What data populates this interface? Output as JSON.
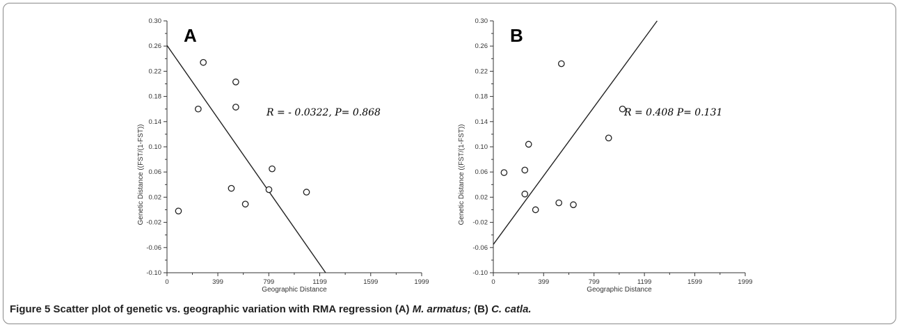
{
  "chart_data": [
    {
      "type": "scatter",
      "panel_label": "A",
      "annotation": "R = - 0.0322,  P= 0.868",
      "xlabel": "Geographic Distance",
      "ylabel": "Genetic Distance ((FST/(1-FST))",
      "xlim": [
        0,
        1999
      ],
      "ylim": [
        -0.1,
        0.3
      ],
      "xticks": [
        "0",
        "399",
        "799",
        "1199",
        "1599",
        "1999"
      ],
      "yticks": [
        "-0.10",
        "-0.06",
        "-0.02",
        "0.02",
        "0.06",
        "0.10",
        "0.14",
        "0.18",
        "0.22",
        "0.26",
        "0.30"
      ],
      "points": [
        {
          "x": 90,
          "y": -0.002
        },
        {
          "x": 245,
          "y": 0.16
        },
        {
          "x": 285,
          "y": 0.234
        },
        {
          "x": 505,
          "y": 0.034
        },
        {
          "x": 540,
          "y": 0.203
        },
        {
          "x": 540,
          "y": 0.163
        },
        {
          "x": 615,
          "y": 0.009
        },
        {
          "x": 800,
          "y": 0.032
        },
        {
          "x": 825,
          "y": 0.065
        },
        {
          "x": 1095,
          "y": 0.028
        }
      ],
      "regression_line": [
        {
          "x": 0,
          "y": 0.261
        },
        {
          "x": 1245,
          "y": -0.1
        }
      ]
    },
    {
      "type": "scatter",
      "panel_label": "B",
      "annotation": "R = 0.408 P= 0.131",
      "xlabel": "Geographic Distance",
      "ylabel": "Genetic Distance ((FST/(1-FST))",
      "xlim": [
        0,
        1999
      ],
      "ylim": [
        -0.1,
        0.3
      ],
      "xticks": [
        "0",
        "399",
        "799",
        "1199",
        "1599",
        "1999"
      ],
      "yticks": [
        "-0.10",
        "-0.06",
        "-0.02",
        "0.02",
        "0.06",
        "0.10",
        "0.14",
        "0.18",
        "0.22",
        "0.26",
        "0.30"
      ],
      "points": [
        {
          "x": 85,
          "y": 0.059
        },
        {
          "x": 250,
          "y": 0.063
        },
        {
          "x": 250,
          "y": 0.025
        },
        {
          "x": 280,
          "y": 0.104
        },
        {
          "x": 335,
          "y": 0.0
        },
        {
          "x": 540,
          "y": 0.232
        },
        {
          "x": 520,
          "y": 0.011
        },
        {
          "x": 635,
          "y": 0.008
        },
        {
          "x": 915,
          "y": 0.114
        },
        {
          "x": 1025,
          "y": 0.16
        }
      ],
      "regression_line": [
        {
          "x": 0,
          "y": -0.055
        },
        {
          "x": 1300,
          "y": 0.3
        }
      ]
    }
  ],
  "caption": {
    "prefix": "Figure 5 Scatter plot of genetic vs. geographic variation with RMA regression (A) ",
    "species_a": "M. armatus;",
    "middle": " (B) ",
    "species_b": "C. catla."
  }
}
